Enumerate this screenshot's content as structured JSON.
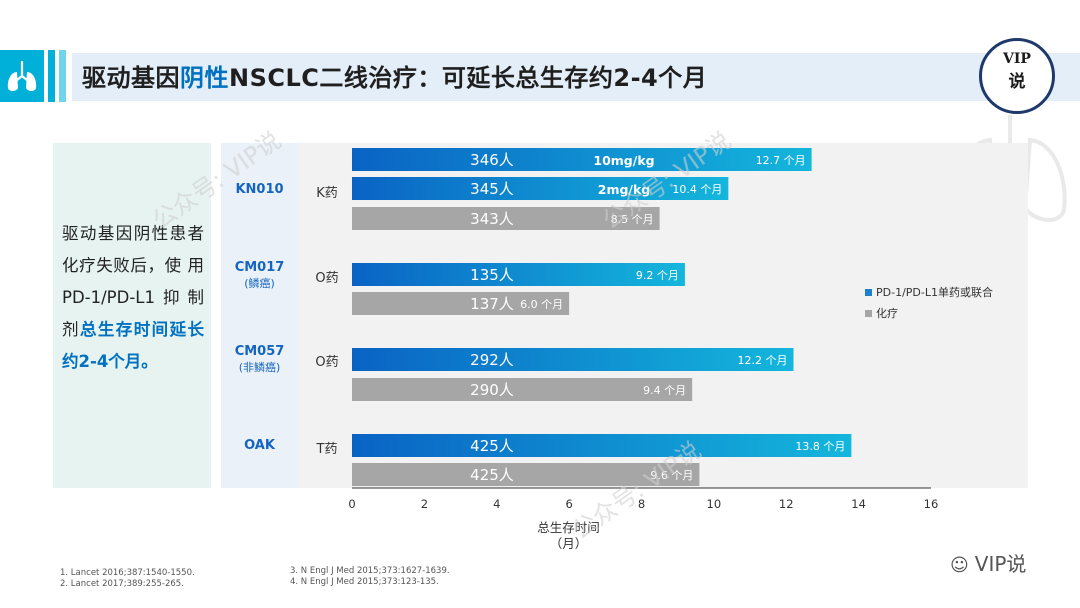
{
  "header": {
    "title_pre": "驱动基因",
    "title_highlight": "阴性",
    "title_post": "NSCLC二线治疗：可延长总生存约2-4个月",
    "badge_line1": "VIP",
    "badge_line2": "说"
  },
  "summary": {
    "text_pre": "驱动基因阴性患者化疗失败后，使 用 PD-1/PD-L1抑制剂",
    "text_em": "总生存时间延长约2-4个月。"
  },
  "trials": [
    {
      "name": "KN010",
      "sub": "",
      "drug": "K药"
    },
    {
      "name": "CM017",
      "sub": "(鳞癌)",
      "drug": "O药"
    },
    {
      "name": "CM057",
      "sub": "(非鳞癌)",
      "drug": "O药"
    },
    {
      "name": "OAK",
      "sub": "",
      "drug": "T药"
    }
  ],
  "chart_data": {
    "type": "bar",
    "orientation": "horizontal",
    "xlabel": "总生存时间（月）",
    "xlim": [
      0,
      16
    ],
    "xticks": [
      0,
      2,
      4,
      6,
      8,
      10,
      12,
      14,
      16
    ],
    "bars": [
      {
        "trial": "KN010",
        "n": "346人",
        "dose": "10mg/kg",
        "value": 12.7,
        "value_label": "12.7 个月",
        "series": "PD-1/PD-L1单药或联合"
      },
      {
        "trial": "KN010",
        "n": "345人",
        "dose": "2mg/kg",
        "value": 10.4,
        "value_label": "10.4 个月",
        "series": "PD-1/PD-L1单药或联合"
      },
      {
        "trial": "KN010",
        "n": "343人",
        "dose": "",
        "value": 8.5,
        "value_label": "8.5 个月",
        "series": "化疗"
      },
      {
        "trial": "CM017",
        "n": "135人",
        "dose": "",
        "value": 9.2,
        "value_label": "9.2 个月",
        "series": "PD-1/PD-L1单药或联合"
      },
      {
        "trial": "CM017",
        "n": "137人",
        "dose": "",
        "value": 6.0,
        "value_label": "6.0 个月",
        "series": "化疗"
      },
      {
        "trial": "CM057",
        "n": "292人",
        "dose": "",
        "value": 12.2,
        "value_label": "12.2 个月",
        "series": "PD-1/PD-L1单药或联合"
      },
      {
        "trial": "CM057",
        "n": "290人",
        "dose": "",
        "value": 9.4,
        "value_label": "9.4 个月",
        "series": "化疗"
      },
      {
        "trial": "OAK",
        "n": "425人",
        "dose": "",
        "value": 13.8,
        "value_label": "13.8 个月",
        "series": "PD-1/PD-L1单药或联合"
      },
      {
        "trial": "OAK",
        "n": "425人",
        "dose": "",
        "value": 9.6,
        "value_label": "9.6 个月",
        "series": "化疗"
      }
    ],
    "legend": [
      {
        "name": "PD-1/PD-L1单药或联合",
        "color": "#1f7fcf"
      },
      {
        "name": "化疗",
        "color": "#a6a6a6"
      }
    ],
    "legend_position": "right"
  },
  "watermark": "公众号: VIP说",
  "footnotes": {
    "left": [
      "1. Lancet 2016;387:1540-1550.",
      "2. Lancet 2017;389:255-265."
    ],
    "right": [
      "3. N Engl J Med 2015;373:1627-1639.",
      "4. N Engl J Med 2015;373:123-135."
    ]
  },
  "wechat_label": "VIP说",
  "colors": {
    "accent": "#0070c0",
    "blue_start": "#0a63c4",
    "blue_end": "#14b6dc",
    "gray": "#a6a6a6"
  }
}
